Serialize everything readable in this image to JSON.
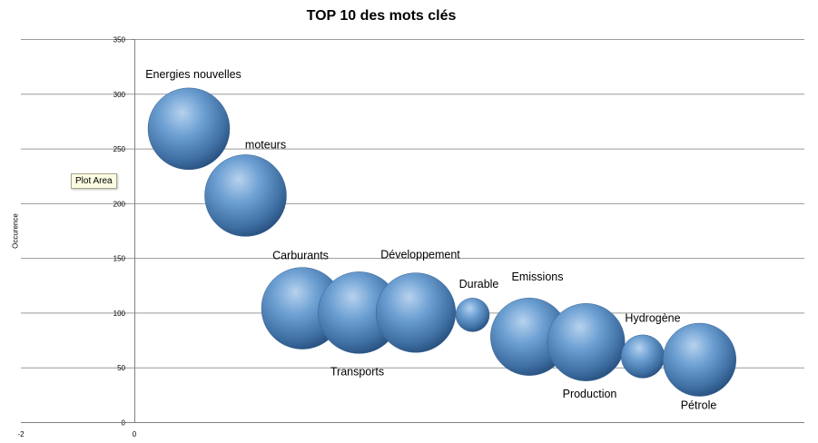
{
  "tooltip": "Plot Area",
  "chart_data": {
    "type": "bubble",
    "title": "TOP 10 des mots clés",
    "xlabel": "",
    "ylabel": "Occurence",
    "xlim": [
      -2,
      10
    ],
    "ylim": [
      0,
      350
    ],
    "x_tick_labels": [
      "-2",
      "0"
    ],
    "y_ticks": [
      0,
      50,
      100,
      150,
      200,
      250,
      300,
      350
    ],
    "grid": true,
    "bubble_color": "#5b8fc6",
    "points": [
      {
        "label": "Energies nouvelles",
        "x": 1,
        "y": 268,
        "size": 100
      },
      {
        "label": "moteurs",
        "x": 2,
        "y": 207,
        "size": 100
      },
      {
        "label": "Carburants",
        "x": 3,
        "y": 104,
        "size": 100
      },
      {
        "label": "Transports",
        "x": 4,
        "y": 100,
        "size": 100
      },
      {
        "label": "Développement",
        "x": 5,
        "y": 100,
        "size": 95
      },
      {
        "label": "Durable",
        "x": 6,
        "y": 98,
        "size": 17
      },
      {
        "label": "Emissions",
        "x": 7,
        "y": 78,
        "size": 90
      },
      {
        "label": "Production",
        "x": 8,
        "y": 73,
        "size": 90
      },
      {
        "label": "Hydrogène",
        "x": 9,
        "y": 60,
        "size": 28
      },
      {
        "label": "Pétrole",
        "x": 10,
        "y": 57,
        "size": 80
      }
    ]
  }
}
